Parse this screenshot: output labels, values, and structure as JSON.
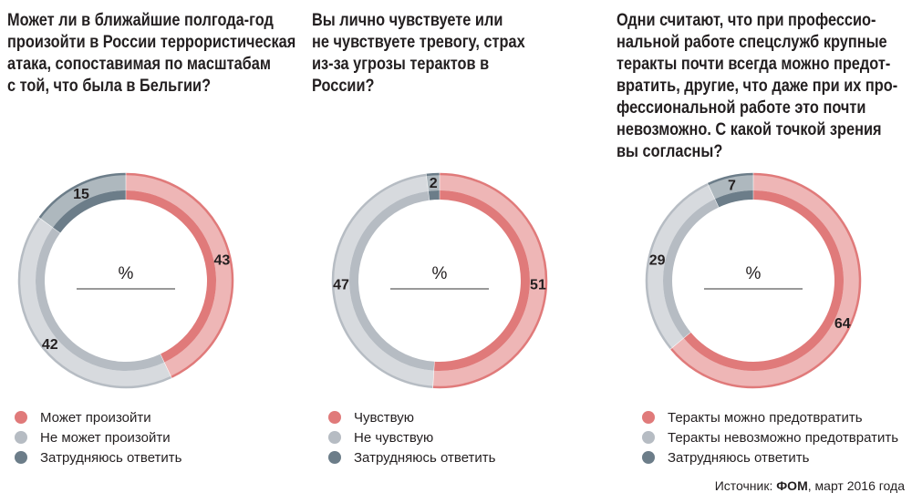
{
  "colors": {
    "can": "#e07a7a",
    "cannot": "#b6bcc3",
    "hard": "#6c7d89"
  },
  "chart_data": [
    {
      "type": "pie",
      "title": "Может ли в ближайшие полгода-год\nпроизойти в России террористическая\nатака, сопоставимая по масштабам\nс той, что была в Бельгии?",
      "center_label": "%",
      "series": [
        {
          "name": "Может произойти",
          "value": 43,
          "color": "#e07a7a"
        },
        {
          "name": "Не может произойти",
          "value": 42,
          "color": "#b6bcc3"
        },
        {
          "name": "Затрудняюсь ответить",
          "value": 15,
          "color": "#6c7d89"
        }
      ]
    },
    {
      "type": "pie",
      "title": "Вы лично чувствуете или\nне чувствуете тревогу, страх\nиз-за угрозы терактов в России?",
      "center_label": "%",
      "series": [
        {
          "name": "Чувствую",
          "value": 51,
          "color": "#e07a7a"
        },
        {
          "name": "Не чувствую",
          "value": 47,
          "color": "#b6bcc3"
        },
        {
          "name": "Затрудняюсь ответить",
          "value": 2,
          "color": "#6c7d89"
        }
      ]
    },
    {
      "type": "pie",
      "title": "Одни считают, что при профессио-\nнальной работе спецслужб крупные\nтеракты почти всегда можно предот-\nвратить, другие, что даже при их про-\nфессиональной работе это почти\nневозможно. С какой точкой зрения\nвы согласны?",
      "center_label": "%",
      "series": [
        {
          "name": "Теракты можно предотвратить",
          "value": 64,
          "color": "#e07a7a"
        },
        {
          "name": "Теракты невозможно предотвратить",
          "value": 29,
          "color": "#b6bcc3"
        },
        {
          "name": "Затрудняюсь ответить",
          "value": 7,
          "color": "#6c7d89"
        }
      ]
    }
  ],
  "source": {
    "prefix": "Источник: ",
    "name": "ФОМ",
    "suffix": ", март 2016 года"
  }
}
